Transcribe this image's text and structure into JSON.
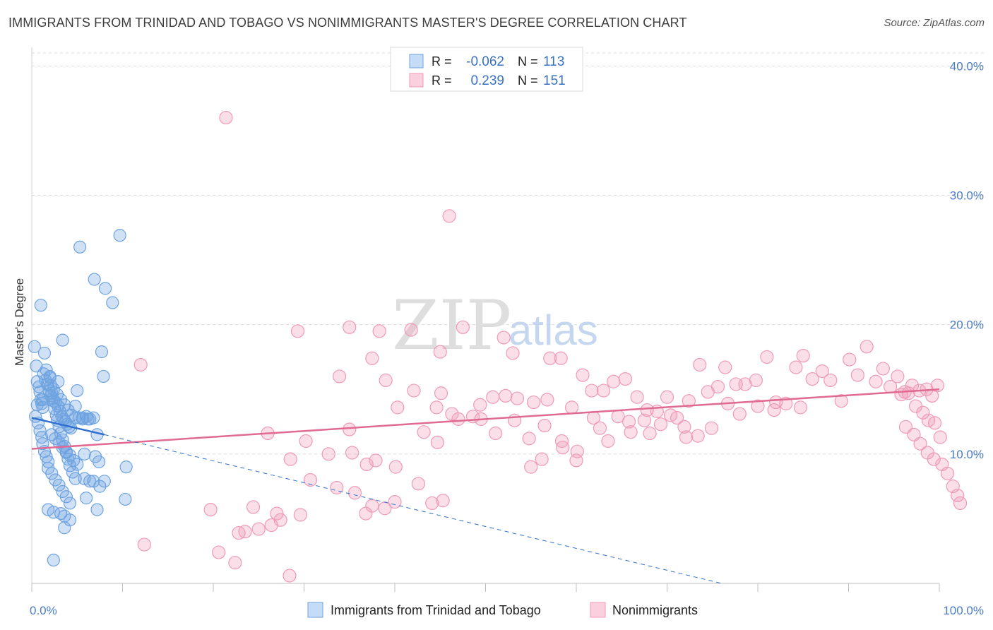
{
  "title": "IMMIGRANTS FROM TRINIDAD AND TOBAGO VS NONIMMIGRANTS MASTER'S DEGREE CORRELATION CHART",
  "source": "Source: ZipAtlas.com",
  "watermark": {
    "zip": "ZIP",
    "atlas": "atlas"
  },
  "legend_box": {
    "rows": [
      {
        "r_label": "R =",
        "r_value": "-0.062",
        "n_label": "N =",
        "n_value": "113"
      },
      {
        "r_label": "R =",
        "r_value": "0.239",
        "n_label": "N =",
        "n_value": "151"
      }
    ]
  },
  "chart_data": {
    "type": "scatter",
    "title": "IMMIGRANTS FROM TRINIDAD AND TOBAGO VS NONIMMIGRANTS MASTER'S DEGREE CORRELATION CHART",
    "ylabel": "Master's Degree",
    "xlabel": "",
    "xlim": [
      0,
      100
    ],
    "ylim": [
      0,
      41
    ],
    "x_tick_labels": [
      "0.0%",
      "100.0%"
    ],
    "y_ticks": [
      10,
      20,
      30,
      40
    ],
    "y_tick_labels": [
      "10.0%",
      "20.0%",
      "30.0%",
      "40.0%"
    ],
    "grid": true,
    "legend_position": "bottom-center",
    "colors": {
      "immigrants": "#6ea3e0",
      "immigrants_line": "#2f6fcf",
      "nonimmigrants": "#f09ab6",
      "nonimmigrants_line": "#e06a93"
    },
    "series": [
      {
        "name": "Immigrants from Trinidad and Tobago",
        "R": -0.062,
        "N": 113,
        "trend": {
          "x": [
            0,
            8
          ],
          "y": [
            12.8,
            11.5
          ],
          "dashed_extension": {
            "x": [
              8,
              76
            ],
            "y": [
              11.5,
              0
            ]
          }
        },
        "points": [
          [
            0.3,
            18.3
          ],
          [
            0.5,
            16.8
          ],
          [
            0.6,
            15.6
          ],
          [
            0.8,
            15.2
          ],
          [
            0.9,
            14.8
          ],
          [
            1.0,
            14.2
          ],
          [
            1.1,
            13.9
          ],
          [
            1.2,
            13.6
          ],
          [
            0.4,
            12.9
          ],
          [
            0.7,
            12.4
          ],
          [
            0.9,
            11.8
          ],
          [
            1.1,
            11.3
          ],
          [
            1.2,
            10.8
          ],
          [
            1.4,
            10.2
          ],
          [
            1.6,
            9.8
          ],
          [
            1.8,
            9.4
          ],
          [
            2.0,
            15.9
          ],
          [
            2.1,
            15.3
          ],
          [
            2.2,
            14.7
          ],
          [
            2.4,
            14.1
          ],
          [
            2.5,
            13.5
          ],
          [
            2.7,
            13.0
          ],
          [
            2.8,
            12.6
          ],
          [
            3.0,
            12.1
          ],
          [
            3.2,
            11.6
          ],
          [
            3.4,
            11.1
          ],
          [
            3.6,
            10.6
          ],
          [
            3.8,
            10.1
          ],
          [
            4.0,
            9.6
          ],
          [
            4.2,
            9.1
          ],
          [
            4.5,
            8.6
          ],
          [
            4.8,
            8.1
          ],
          [
            1.0,
            21.5
          ],
          [
            1.3,
            16.2
          ],
          [
            1.5,
            15.7
          ],
          [
            1.7,
            15.4
          ],
          [
            1.9,
            14.9
          ],
          [
            2.1,
            14.5
          ],
          [
            2.3,
            14.3
          ],
          [
            2.6,
            14.0
          ],
          [
            2.9,
            13.7
          ],
          [
            3.1,
            13.3
          ],
          [
            3.3,
            12.9
          ],
          [
            3.5,
            12.7
          ],
          [
            3.7,
            12.5
          ],
          [
            3.9,
            12.3
          ],
          [
            4.1,
            12.1
          ],
          [
            4.3,
            12.0
          ],
          [
            1.4,
            17.8
          ],
          [
            1.6,
            16.5
          ],
          [
            2.0,
            16.0
          ],
          [
            2.4,
            15.0
          ],
          [
            2.8,
            14.6
          ],
          [
            3.2,
            14.2
          ],
          [
            3.6,
            13.8
          ],
          [
            4.0,
            13.4
          ],
          [
            4.4,
            13.0
          ],
          [
            4.8,
            12.8
          ],
          [
            5.2,
            12.8
          ],
          [
            5.6,
            12.8
          ],
          [
            6.0,
            12.9
          ],
          [
            6.4,
            12.7
          ],
          [
            2.2,
            11.5
          ],
          [
            2.6,
            11.2
          ],
          [
            3.0,
            10.9
          ],
          [
            3.4,
            10.5
          ],
          [
            3.8,
            10.2
          ],
          [
            4.2,
            9.9
          ],
          [
            4.6,
            9.5
          ],
          [
            5.0,
            9.2
          ],
          [
            1.8,
            8.9
          ],
          [
            2.2,
            8.5
          ],
          [
            2.6,
            8.0
          ],
          [
            3.0,
            7.6
          ],
          [
            3.4,
            7.1
          ],
          [
            3.8,
            6.7
          ],
          [
            4.2,
            6.2
          ],
          [
            1.8,
            5.7
          ],
          [
            2.4,
            5.5
          ],
          [
            3.2,
            5.4
          ],
          [
            3.6,
            5.2
          ],
          [
            4.2,
            4.9
          ],
          [
            3.6,
            4.3
          ],
          [
            2.4,
            1.8
          ],
          [
            3.4,
            18.8
          ],
          [
            5.3,
            26.0
          ],
          [
            6.9,
            23.5
          ],
          [
            8.1,
            22.8
          ],
          [
            8.9,
            21.7
          ],
          [
            7.7,
            17.9
          ],
          [
            9.7,
            26.9
          ],
          [
            7.9,
            16.0
          ],
          [
            5.0,
            14.9
          ],
          [
            4.8,
            13.7
          ],
          [
            5.6,
            12.7
          ],
          [
            6.2,
            12.7
          ],
          [
            6.8,
            12.8
          ],
          [
            7.2,
            11.5
          ],
          [
            7.0,
            9.8
          ],
          [
            7.4,
            9.4
          ],
          [
            5.8,
            10.0
          ],
          [
            6.4,
            7.9
          ],
          [
            6.8,
            7.9
          ],
          [
            7.5,
            7.5
          ],
          [
            5.8,
            8.1
          ],
          [
            6.0,
            6.6
          ],
          [
            10.4,
            9.0
          ],
          [
            10.3,
            6.5
          ],
          [
            7.2,
            5.7
          ],
          [
            8.0,
            7.9
          ],
          [
            2.9,
            15.6
          ],
          [
            1.2,
            14.2
          ],
          [
            0.6,
            13.8
          ]
        ]
      },
      {
        "name": "Nonimmigrants",
        "R": 0.239,
        "N": 151,
        "trend": {
          "x": [
            0,
            100
          ],
          "y": [
            10.4,
            15.0
          ]
        },
        "points": [
          [
            21.4,
            36.0
          ],
          [
            46.0,
            28.4
          ],
          [
            12.0,
            16.9
          ],
          [
            29.3,
            19.5
          ],
          [
            35.0,
            19.8
          ],
          [
            41.8,
            19.6
          ],
          [
            47.5,
            19.8
          ],
          [
            38.3,
            19.5
          ],
          [
            52.0,
            19.0
          ],
          [
            45.0,
            17.9
          ],
          [
            37.5,
            17.4
          ],
          [
            53.0,
            17.8
          ],
          [
            57.1,
            17.4
          ],
          [
            58.3,
            17.4
          ],
          [
            33.9,
            16.0
          ],
          [
            39.0,
            15.7
          ],
          [
            42.1,
            14.9
          ],
          [
            45.1,
            14.7
          ],
          [
            40.3,
            13.6
          ],
          [
            44.6,
            13.6
          ],
          [
            46.3,
            13.1
          ],
          [
            49.4,
            13.8
          ],
          [
            50.8,
            14.4
          ],
          [
            52.2,
            14.5
          ],
          [
            53.5,
            14.3
          ],
          [
            55.3,
            14.0
          ],
          [
            56.8,
            14.2
          ],
          [
            59.5,
            13.6
          ],
          [
            60.7,
            16.1
          ],
          [
            61.7,
            14.9
          ],
          [
            63.0,
            14.9
          ],
          [
            64.1,
            15.6
          ],
          [
            65.4,
            15.8
          ],
          [
            66.7,
            14.4
          ],
          [
            67.8,
            13.4
          ],
          [
            68.9,
            13.3
          ],
          [
            70.0,
            14.4
          ],
          [
            71.1,
            12.8
          ],
          [
            72.4,
            14.1
          ],
          [
            73.6,
            16.9
          ],
          [
            74.5,
            14.8
          ],
          [
            75.6,
            15.2
          ],
          [
            76.4,
            16.7
          ],
          [
            77.6,
            15.4
          ],
          [
            78.6,
            15.4
          ],
          [
            79.8,
            15.7
          ],
          [
            81.0,
            17.5
          ],
          [
            82.0,
            14.0
          ],
          [
            83.1,
            13.9
          ],
          [
            84.2,
            16.7
          ],
          [
            85.0,
            17.6
          ],
          [
            86.0,
            15.8
          ],
          [
            87.1,
            16.4
          ],
          [
            88.0,
            15.7
          ],
          [
            89.2,
            14.1
          ],
          [
            90.1,
            17.3
          ],
          [
            91.0,
            16.1
          ],
          [
            92.0,
            18.3
          ],
          [
            93.0,
            15.6
          ],
          [
            93.8,
            16.6
          ],
          [
            94.6,
            15.2
          ],
          [
            95.4,
            16.0
          ],
          [
            96.2,
            14.8
          ],
          [
            97.0,
            15.3
          ],
          [
            97.8,
            14.9
          ],
          [
            98.6,
            15.0
          ],
          [
            99.2,
            14.5
          ],
          [
            99.8,
            15.3
          ],
          [
            95.8,
            14.6
          ],
          [
            96.6,
            14.7
          ],
          [
            97.4,
            13.7
          ],
          [
            98.2,
            13.2
          ],
          [
            98.8,
            12.6
          ],
          [
            99.5,
            12.4
          ],
          [
            100.1,
            11.3
          ],
          [
            96.3,
            12.1
          ],
          [
            97.2,
            11.5
          ],
          [
            97.9,
            10.8
          ],
          [
            98.7,
            10.1
          ],
          [
            99.4,
            9.6
          ],
          [
            100.3,
            9.2
          ],
          [
            100.9,
            8.5
          ],
          [
            101.5,
            7.5
          ],
          [
            102.0,
            6.8
          ],
          [
            102.3,
            6.2
          ],
          [
            30.2,
            11.0
          ],
          [
            32.7,
            10.0
          ],
          [
            35.3,
            10.1
          ],
          [
            36.9,
            9.2
          ],
          [
            37.9,
            9.5
          ],
          [
            40.1,
            9.0
          ],
          [
            43.2,
            11.7
          ],
          [
            44.7,
            10.9
          ],
          [
            49.5,
            12.7
          ],
          [
            51.1,
            11.6
          ],
          [
            53.2,
            12.6
          ],
          [
            54.8,
            11.2
          ],
          [
            56.5,
            12.2
          ],
          [
            58.4,
            11.0
          ],
          [
            60.1,
            10.2
          ],
          [
            61.9,
            12.8
          ],
          [
            63.5,
            11.0
          ],
          [
            65.8,
            12.5
          ],
          [
            67.5,
            12.6
          ],
          [
            69.3,
            12.3
          ],
          [
            71.9,
            12.1
          ],
          [
            73.4,
            11.4
          ],
          [
            74.9,
            12.0
          ],
          [
            35.0,
            11.9
          ],
          [
            26.0,
            11.6
          ],
          [
            28.5,
            9.6
          ],
          [
            30.7,
            8.0
          ],
          [
            33.6,
            7.4
          ],
          [
            35.6,
            7.0
          ],
          [
            37.5,
            6.0
          ],
          [
            40.0,
            6.3
          ],
          [
            42.6,
            7.7
          ],
          [
            44.1,
            6.2
          ],
          [
            45.3,
            6.4
          ],
          [
            27.0,
            5.4
          ],
          [
            26.4,
            4.5
          ],
          [
            27.4,
            4.9
          ],
          [
            24.4,
            5.9
          ],
          [
            25.0,
            4.2
          ],
          [
            23.5,
            4.0
          ],
          [
            22.4,
            1.6
          ],
          [
            29.6,
            5.3
          ],
          [
            36.8,
            5.4
          ],
          [
            38.9,
            5.8
          ],
          [
            12.4,
            3.0
          ],
          [
            19.7,
            5.7
          ],
          [
            20.6,
            2.4
          ],
          [
            22.8,
            3.9
          ],
          [
            28.4,
            0.6
          ],
          [
            56.2,
            9.6
          ],
          [
            55.0,
            9.0
          ],
          [
            58.5,
            10.5
          ],
          [
            60.0,
            9.5
          ],
          [
            47.0,
            12.7
          ],
          [
            48.6,
            12.9
          ],
          [
            62.6,
            12.0
          ],
          [
            64.6,
            12.9
          ],
          [
            66.0,
            11.7
          ],
          [
            68.1,
            11.6
          ],
          [
            70.4,
            13.0
          ],
          [
            72.1,
            11.3
          ],
          [
            76.7,
            13.9
          ],
          [
            78.0,
            13.1
          ],
          [
            80.0,
            13.7
          ],
          [
            81.8,
            13.4
          ],
          [
            84.7,
            13.6
          ]
        ]
      }
    ]
  }
}
